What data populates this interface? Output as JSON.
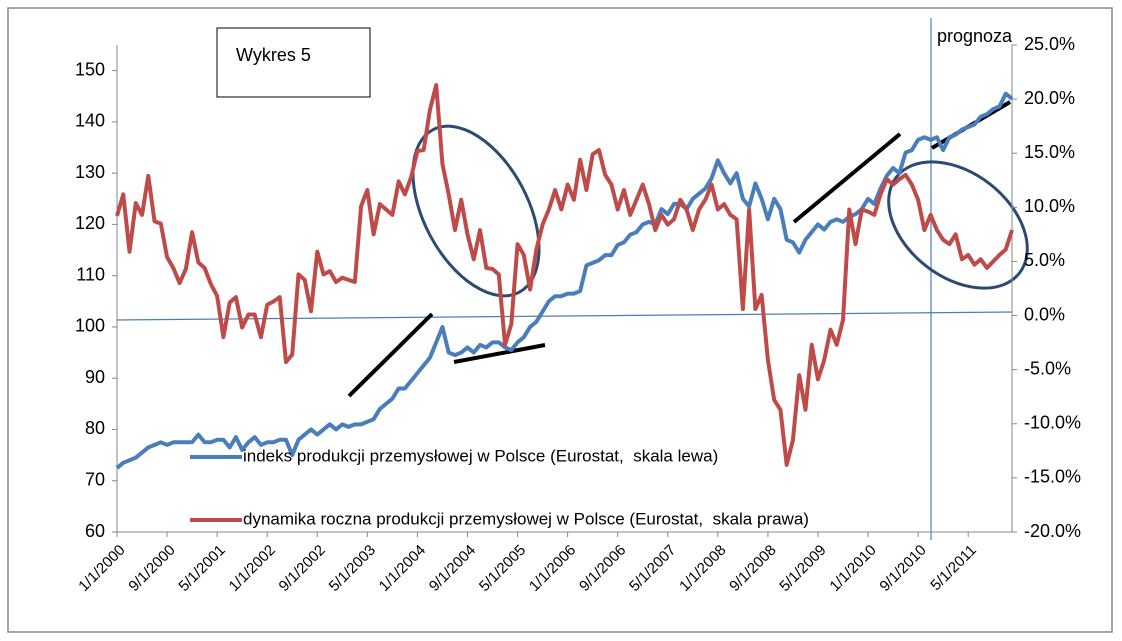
{
  "chart_data": {
    "type": "line",
    "title": "Wykres 5",
    "annotation": "prognoza",
    "categories": [
      "1/1/2000",
      null,
      null,
      null,
      null,
      null,
      null,
      null,
      "9/1/2000",
      null,
      null,
      null,
      null,
      null,
      null,
      null,
      "5/1/2001",
      null,
      null,
      null,
      null,
      null,
      null,
      null,
      "1/1/2002",
      null,
      null,
      null,
      null,
      null,
      null,
      null,
      "9/1/2002",
      null,
      null,
      null,
      null,
      null,
      null,
      null,
      "5/1/2003",
      null,
      null,
      null,
      null,
      null,
      null,
      null,
      "1/1/2004",
      null,
      null,
      null,
      null,
      null,
      null,
      null,
      "9/1/2004",
      null,
      null,
      null,
      null,
      null,
      null,
      null,
      "5/1/2005",
      null,
      null,
      null,
      null,
      null,
      null,
      null,
      "1/1/2006",
      null,
      null,
      null,
      null,
      null,
      null,
      null,
      "9/1/2006",
      null,
      null,
      null,
      null,
      null,
      null,
      null,
      "5/1/2007",
      null,
      null,
      null,
      null,
      null,
      null,
      null,
      "1/1/2008",
      null,
      null,
      null,
      null,
      null,
      null,
      null,
      "9/1/2008",
      null,
      null,
      null,
      null,
      null,
      null,
      null,
      "5/1/2009",
      null,
      null,
      null,
      null,
      null,
      null,
      null,
      "1/1/2010",
      null,
      null,
      null,
      null,
      null,
      null,
      null,
      "9/1/2010",
      null,
      null,
      null,
      null,
      null,
      null,
      null,
      "5/1/2011",
      null,
      null,
      null,
      null,
      null,
      null,
      null
    ],
    "series": [
      {
        "name": "indeks produkcji przemysłowej w Polsce (Eurostat,  skala lewa)",
        "color": "#4a7ebb",
        "axis": "y",
        "values": [
          72.5,
          73.5,
          74,
          74.5,
          75.5,
          76.5,
          77,
          77.5,
          77,
          77.5,
          77.5,
          77.5,
          77.5,
          79,
          77.5,
          77.5,
          78,
          78,
          76.5,
          78.5,
          76,
          77.5,
          78.5,
          77,
          77.5,
          77.5,
          78,
          78,
          75,
          78,
          79,
          80,
          79,
          80,
          81,
          80,
          81,
          80.5,
          81,
          81,
          81.5,
          82,
          84,
          85,
          86,
          88,
          88,
          89.5,
          91,
          92.5,
          94,
          97,
          100,
          95,
          94.5,
          95,
          96,
          95,
          96.5,
          96,
          97,
          97,
          96,
          95.5,
          97,
          98,
          100,
          101,
          103,
          105,
          106,
          106,
          106.5,
          106.5,
          107,
          112,
          112.5,
          113,
          114,
          114,
          116,
          116.5,
          118,
          118.5,
          120,
          120.5,
          120,
          123,
          122,
          124,
          124,
          123,
          125,
          126,
          127,
          129,
          132.5,
          130,
          128,
          130,
          125,
          123.5,
          128,
          125,
          121,
          125,
          123,
          117,
          116.5,
          114.5,
          117,
          118.5,
          120,
          119,
          120.5,
          121,
          120.5,
          121.5,
          122,
          123,
          125,
          124,
          127,
          129.5,
          131,
          130,
          134,
          134.5,
          136.5,
          137,
          136.5,
          137,
          134.5,
          137,
          137.5,
          138.5,
          139,
          139.5,
          141,
          141.5,
          142.5,
          143,
          145.5,
          144.5
        ]
      },
      {
        "name": "dynamika roczna produkcji przemysłowej w Polsce (Eurostat,  skala prawa)",
        "color": "#be4b48",
        "axis": "y2",
        "values": [
          9.2,
          11.2,
          5.9,
          10.4,
          9.3,
          12.9,
          8.7,
          8.5,
          5.4,
          4.4,
          3.0,
          4.3,
          7.7,
          4.9,
          4.4,
          2.9,
          1.8,
          -2.0,
          1.2,
          1.7,
          -1.1,
          0.1,
          0.1,
          -2.0,
          1.0,
          1.3,
          1.7,
          -4.3,
          -3.6,
          3.8,
          3.3,
          0.4,
          5.9,
          3.8,
          4.1,
          3.1,
          3.5,
          3.3,
          3.1,
          10.1,
          11.6,
          7.5,
          10.3,
          9.8,
          9.3,
          12.4,
          11.2,
          12.8,
          15.2,
          15.3,
          19.0,
          21.3,
          14.0,
          11.2,
          7.9,
          10.7,
          7.5,
          5.2,
          7.9,
          4.4,
          4.3,
          3.8,
          -2.7,
          -0.8,
          6.6,
          5.6,
          2.4,
          6.1,
          8.4,
          9.8,
          11.6,
          9.8,
          12.1,
          10.7,
          14.4,
          11.6,
          14.9,
          15.3,
          13.0,
          12.1,
          9.8,
          11.6,
          9.3,
          10.7,
          12.1,
          10.3,
          7.9,
          9.3,
          8.4,
          8.9,
          10.7,
          9.8,
          7.9,
          9.8,
          10.7,
          12.1,
          9.8,
          10.3,
          9.3,
          8.9,
          0.6,
          9.8,
          0.6,
          1.9,
          -4.1,
          -7.8,
          -8.7,
          -13.8,
          -11.5,
          -5.5,
          -8.7,
          -2.7,
          -5.9,
          -4.1,
          -1.3,
          -2.7,
          -0.4,
          9.8,
          6.6,
          9.8,
          9.6,
          9.3,
          11.2,
          12.6,
          12.1,
          12.6,
          13.0,
          12.1,
          10.7,
          7.9,
          9.3,
          7.9,
          7.0,
          6.6,
          7.5,
          5.2,
          5.6,
          4.7,
          5.2,
          4.4,
          5.0,
          5.6,
          6.1,
          7.9
        ]
      }
    ],
    "ylim": [
      60,
      155
    ],
    "yticks": [
      60,
      70,
      80,
      90,
      100,
      110,
      120,
      130,
      140,
      150
    ],
    "y2lim": [
      -20,
      25
    ],
    "y2ticks": [
      {
        "value": -20,
        "label": "-20.0%"
      },
      {
        "value": -15,
        "label": "-15.0%"
      },
      {
        "value": -10,
        "label": "-10.0%"
      },
      {
        "value": -5,
        "label": "-5.0%"
      },
      {
        "value": 0,
        "label": "0.0%"
      },
      {
        "value": 5,
        "label": "5.0%"
      },
      {
        "value": 10,
        "label": "10.0%"
      },
      {
        "value": 15,
        "label": "15.0%"
      },
      {
        "value": 20,
        "label": "20.0%"
      },
      {
        "value": 25,
        "label": "25.0%"
      }
    ],
    "grid": false
  }
}
